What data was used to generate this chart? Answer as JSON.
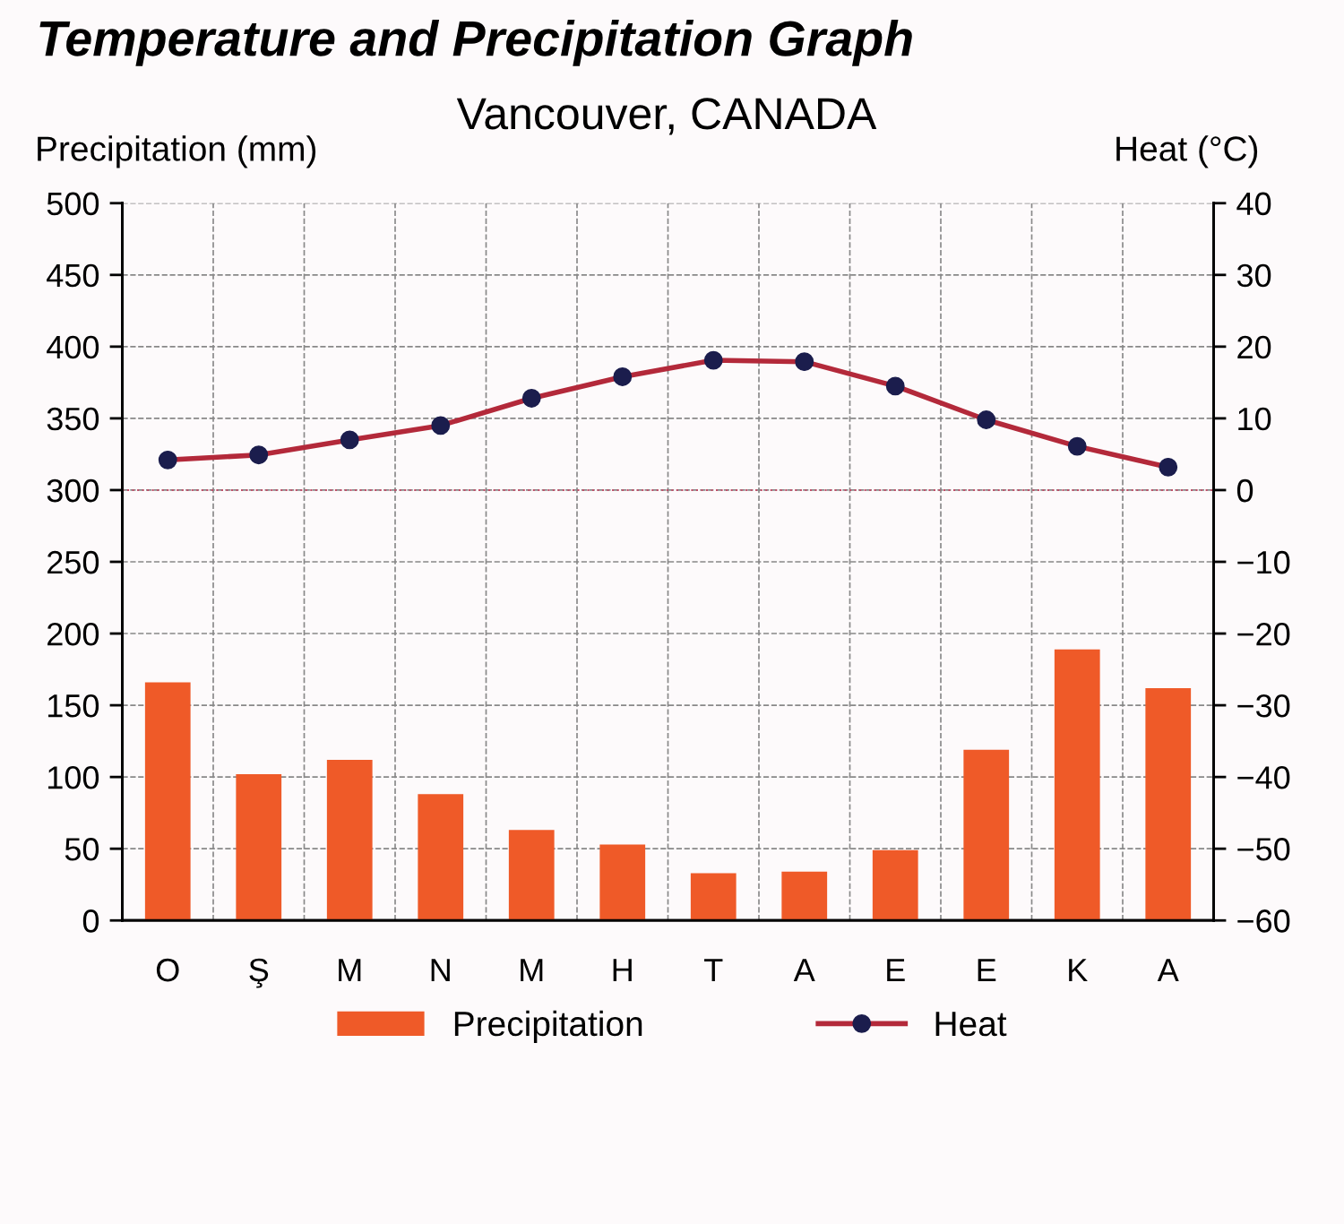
{
  "chart_data": {
    "type": "bar",
    "title": "Temperature and Precipitation Graph",
    "subtitle": "Vancouver, CANADA",
    "ylabel": "Precipitation (mm)",
    "y2label": "Heat (°C)",
    "categories": [
      "O",
      "Ş",
      "M",
      "N",
      "M",
      "H",
      "T",
      "A",
      "E",
      "E",
      "K",
      "A"
    ],
    "series": [
      {
        "name": "Precipitation",
        "color": "#ef5a28",
        "values": [
          166,
          102,
          112,
          88,
          63,
          53,
          33,
          34,
          49,
          119,
          189,
          162
        ]
      },
      {
        "name": "Heat",
        "type": "line",
        "axis": "y2",
        "color": "#b3293a",
        "marker": "circle",
        "values": [
          4.2,
          4.9,
          7,
          9,
          12.8,
          15.8,
          18.1,
          17.9,
          14.5,
          9.8,
          6.1,
          3.2
        ]
      }
    ],
    "ylim": [
      0,
      500
    ],
    "yticks": [
      0,
      50,
      100,
      150,
      200,
      250,
      300,
      350,
      400,
      450,
      500
    ],
    "y2lim": [
      -60,
      40
    ],
    "y2ticks": [
      {
        "value": -60,
        "label": "−60"
      },
      {
        "value": -50,
        "label": "−50"
      },
      {
        "value": -40,
        "label": "−40"
      },
      {
        "value": -30,
        "label": "−30"
      },
      {
        "value": -20,
        "label": "−20"
      },
      {
        "value": -10,
        "label": "−10"
      },
      0,
      10,
      20,
      30,
      40
    ],
    "ref_lines": [
      {
        "axis": "y2",
        "value": 0,
        "color": "#c0506a",
        "line_style": "dotted"
      }
    ],
    "grid": true,
    "legend": "bottom"
  }
}
